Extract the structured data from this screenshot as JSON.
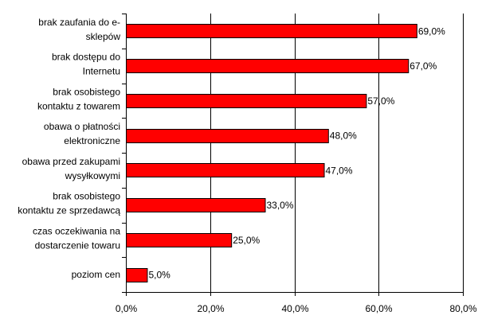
{
  "chart_data": {
    "type": "bar",
    "orientation": "horizontal",
    "title": "",
    "xlabel": "",
    "ylabel": "",
    "categories": [
      [
        "brak zaufania do e-",
        "sklepów"
      ],
      [
        "brak dostępu do",
        "Internetu"
      ],
      [
        "brak osobistego",
        "kontaktu z towarem"
      ],
      [
        "obawa o płatności",
        "elektroniczne"
      ],
      [
        "obawa przed zakupami",
        "wysyłkowymi"
      ],
      [
        "brak osobistego",
        "kontaktu ze sprzedawcą"
      ],
      [
        "czas oczekiwania na",
        "dostarczenie towaru"
      ],
      [
        "poziom cen"
      ]
    ],
    "values": [
      69.0,
      67.0,
      57.0,
      48.0,
      47.0,
      33.0,
      25.0,
      5.0
    ],
    "value_labels": [
      "69,0%",
      "67,0%",
      "57,0%",
      "48,0%",
      "47,0%",
      "33,0%",
      "25,0%",
      "5,0%"
    ],
    "xlim": [
      0,
      80
    ],
    "x_ticks": [
      0,
      20,
      40,
      60,
      80
    ],
    "x_tick_labels": [
      "0,0%",
      "20,0%",
      "40,0%",
      "60,0%",
      "80,0%"
    ],
    "grid": "vertical",
    "legend": "none",
    "colors": {
      "bar": "#ff0000",
      "bar_border": "#000000",
      "grid": "#000000",
      "axis": "#000000"
    }
  }
}
